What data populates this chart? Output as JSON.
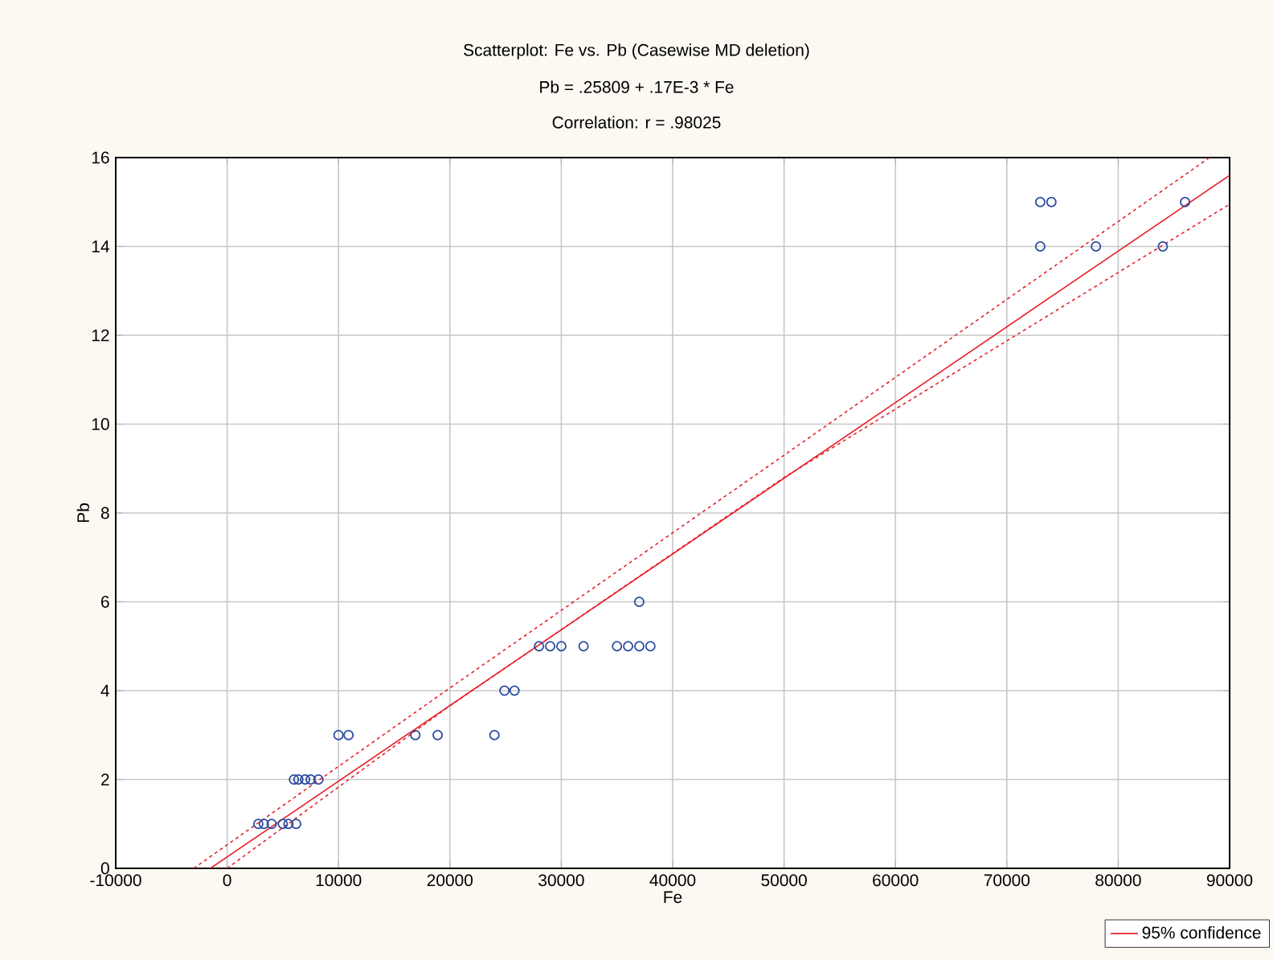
{
  "chart_data": {
    "type": "scatter",
    "title": "Scatterplot: Fe        vs. Pb        (Casewise MD deletion)",
    "subtitle": "Pb        = .25809 + .17E-3 * Fe",
    "annotations": [
      "Correlation: r = .98025"
    ],
    "xlabel": "Fe",
    "ylabel": "Pb",
    "xlim": [
      -10000,
      90000
    ],
    "ylim": [
      0,
      16
    ],
    "xticks": [
      -10000,
      0,
      10000,
      20000,
      30000,
      40000,
      50000,
      60000,
      70000,
      80000,
      90000
    ],
    "yticks": [
      0,
      2,
      4,
      6,
      8,
      10,
      12,
      14,
      16
    ],
    "grid": true,
    "legend": "bottom right",
    "series": [
      {
        "color": "#2b4ba0",
        "marker": "circle",
        "x": [
          2800,
          3300,
          4000,
          5000,
          5500,
          6200,
          6000,
          6400,
          7000,
          7500,
          8200,
          10000,
          10900,
          16900,
          18900,
          24000,
          24900,
          25800,
          28000,
          29000,
          30000,
          32000,
          35000,
          36000,
          37000,
          38000,
          37000,
          73000,
          78000,
          84000,
          73000,
          74000,
          86000
        ],
        "values": [
          1,
          1,
          1,
          1,
          1,
          1,
          2,
          2,
          2,
          2,
          2,
          3,
          3,
          3,
          3,
          3,
          4,
          4,
          5,
          5,
          5,
          5,
          5,
          5,
          5,
          5,
          6,
          14,
          14,
          14,
          15,
          15,
          15
        ]
      },
      {
        "type": "line",
        "name": "95% confidence",
        "color": "#e8202a",
        "line_style": "solid",
        "x": [
          -1500,
          90000
        ],
        "values": [
          0,
          15.6
        ]
      },
      {
        "type": "line",
        "color": "#e8202a",
        "line_style": "dashed",
        "x": [
          -3000,
          20000,
          50000,
          88200
        ],
        "values": [
          0,
          4.06,
          9.3,
          16
        ]
      },
      {
        "type": "line",
        "color": "#e8202a",
        "line_style": "dashed",
        "x": [
          0,
          20000,
          50000,
          90000
        ],
        "values": [
          0,
          3.66,
          8.8,
          14.95
        ]
      }
    ]
  }
}
